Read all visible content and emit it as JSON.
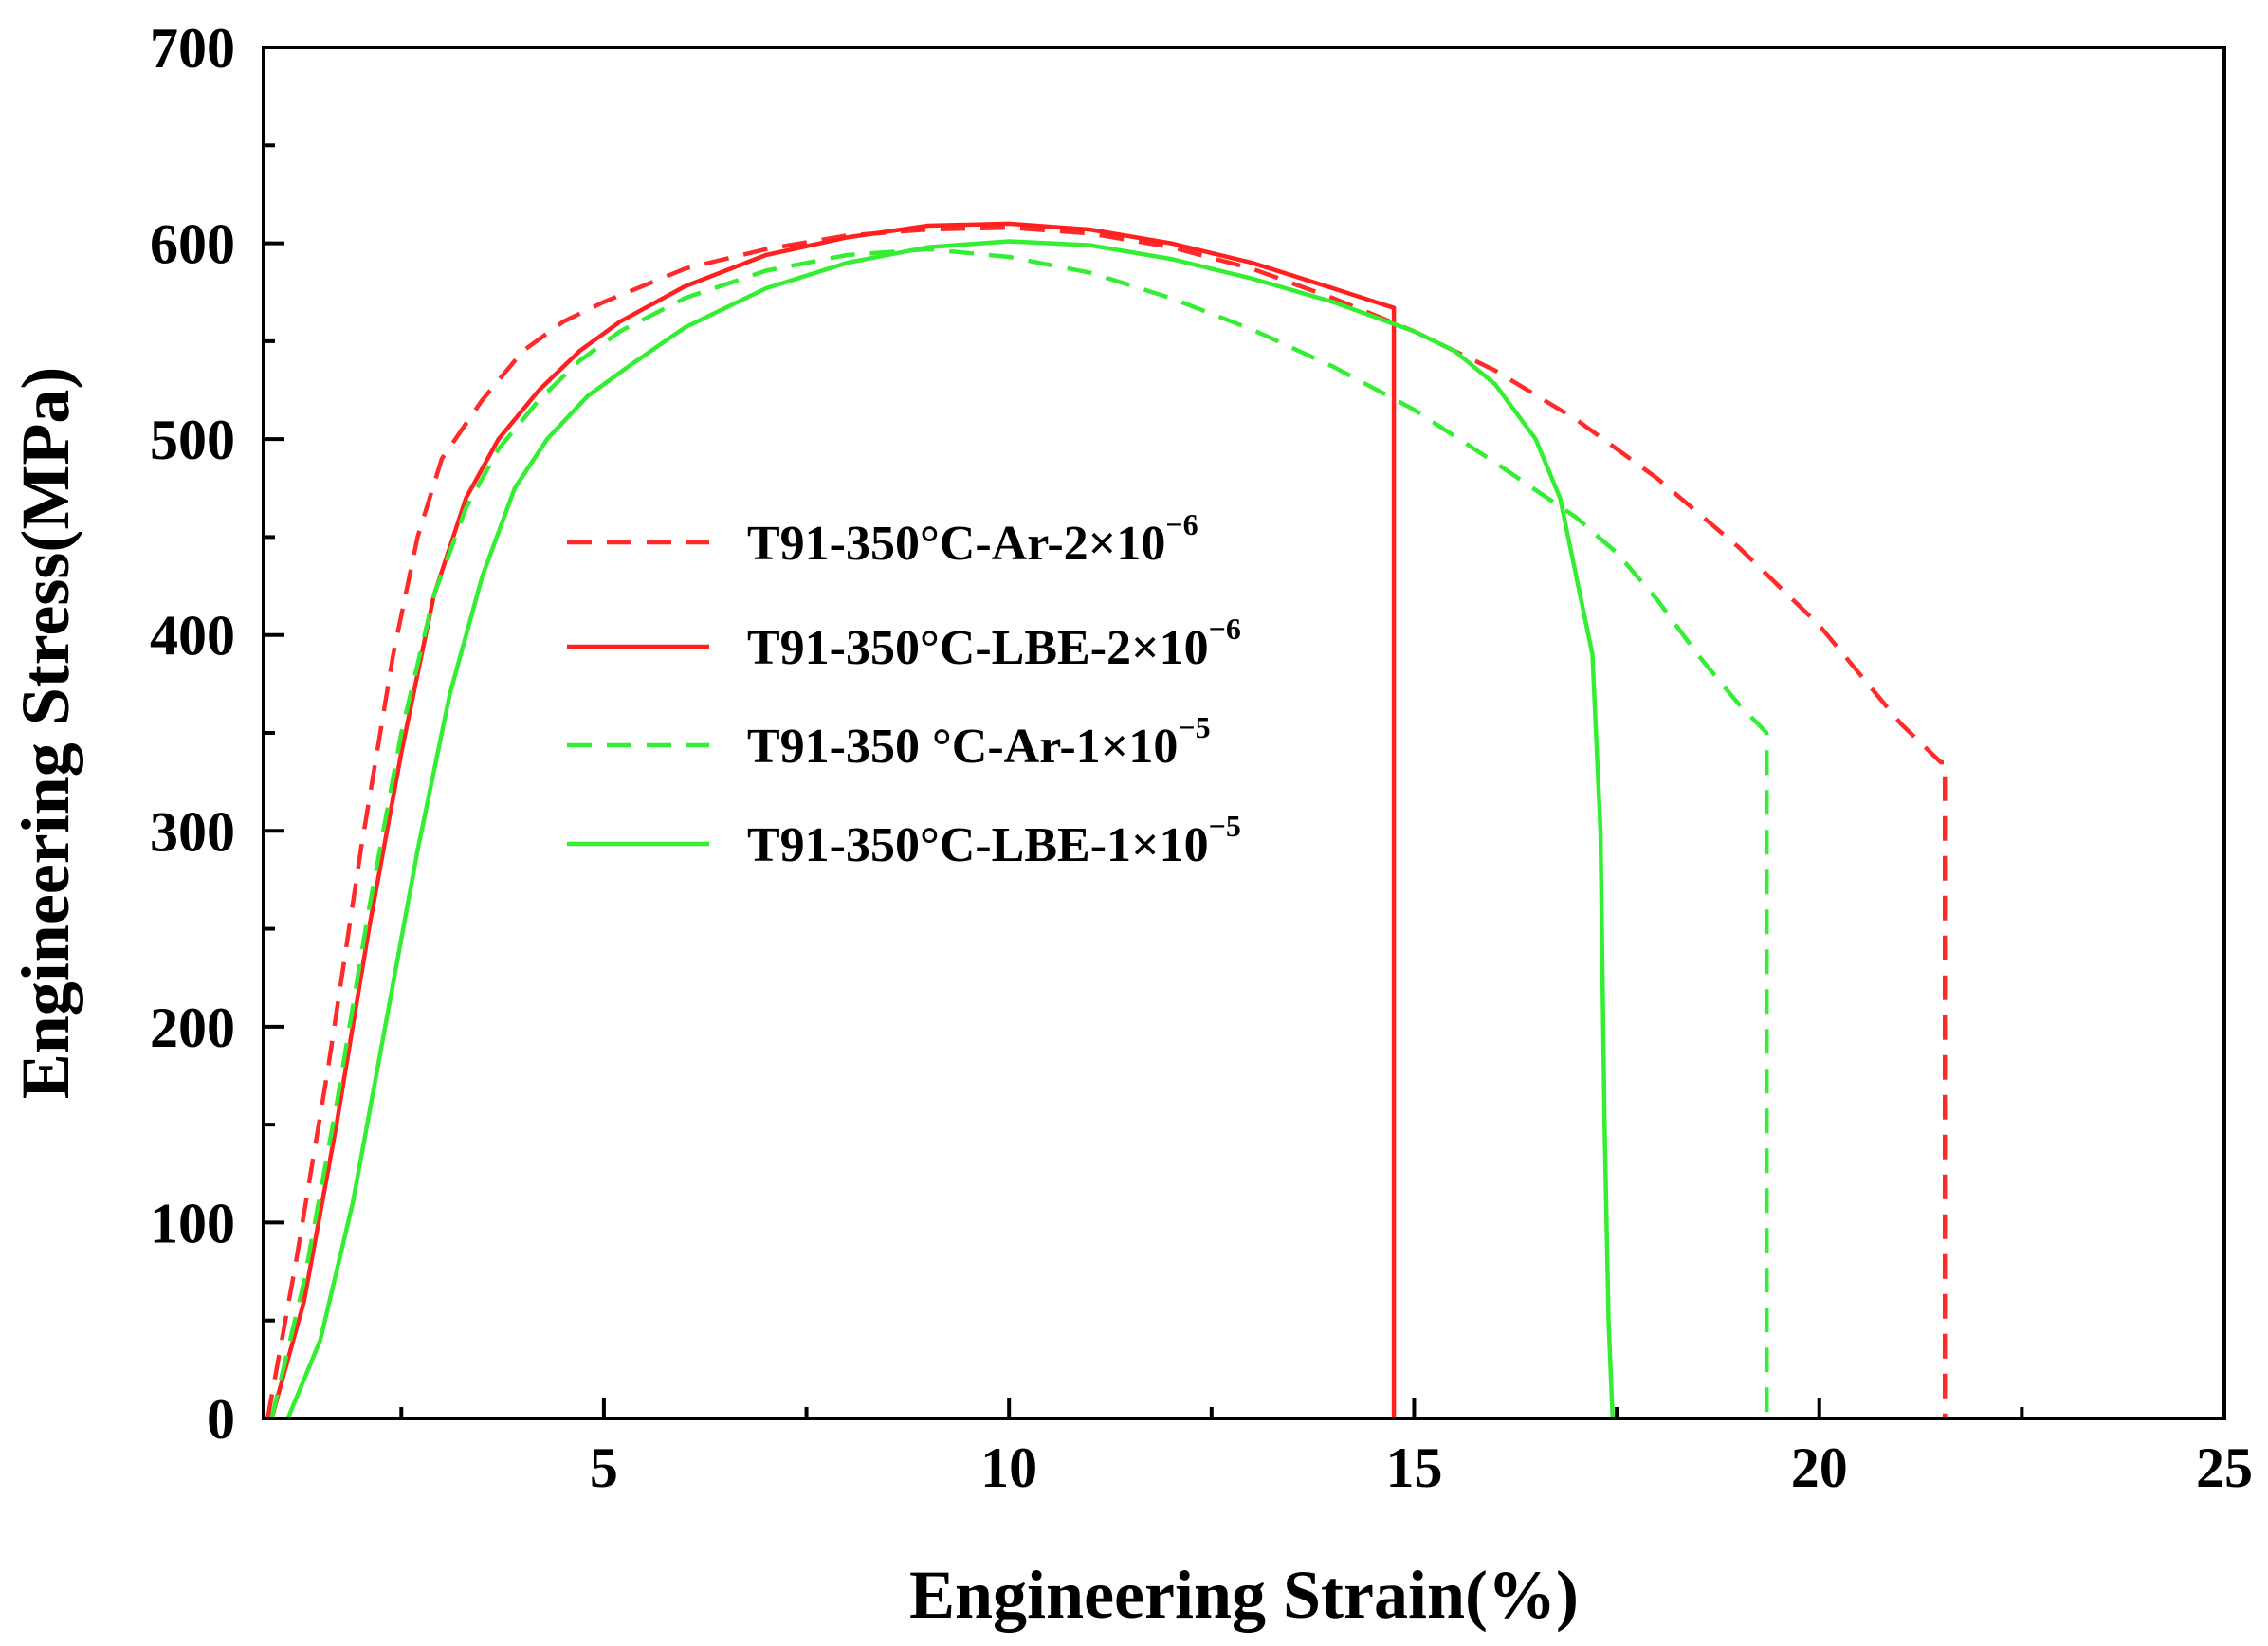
{
  "chart_data": {
    "type": "line",
    "title": "",
    "xlabel": "Engineering Strain(%)",
    "ylabel": "Engineering Stress(MPa)",
    "xlim": [
      0.8,
      25
    ],
    "ylim": [
      0,
      700
    ],
    "xticks": [
      5,
      10,
      15,
      20,
      25
    ],
    "yticks": [
      0,
      100,
      200,
      300,
      400,
      500,
      600,
      700
    ],
    "legend_position": "center-left",
    "series": [
      {
        "name": "T91-350°C-Ar-2×10",
        "exponent": "−6",
        "color": "#ff2a2a",
        "dash": "dashed",
        "x": [
          0.85,
          1.2,
          1.6,
          2.0,
          2.4,
          2.7,
          3.0,
          3.5,
          4.0,
          4.5,
          5.0,
          6.0,
          7.0,
          8.0,
          9.0,
          10.0,
          11.0,
          12.0,
          13.0,
          14.0,
          15.0,
          16.0,
          17.0,
          18.0,
          19.0,
          20.0,
          20.5,
          21.0,
          21.5,
          21.55,
          21.55
        ],
        "y": [
          0,
          80,
          180,
          290,
          390,
          450,
          490,
          520,
          545,
          560,
          570,
          587,
          597,
          604,
          607,
          608,
          605,
          598,
          587,
          572,
          555,
          535,
          510,
          480,
          445,
          405,
          380,
          355,
          335,
          335,
          0
        ]
      },
      {
        "name": "T91-350°C-LBE-2×10",
        "exponent": "−6",
        "color": "#ff2020",
        "dash": "solid",
        "x": [
          0.9,
          1.3,
          1.7,
          2.1,
          2.5,
          2.9,
          3.3,
          3.7,
          4.2,
          4.7,
          5.2,
          6.0,
          7.0,
          8.0,
          9.0,
          10.0,
          11.0,
          12.0,
          13.0,
          14.0,
          14.6,
          14.75,
          14.75
        ],
        "y": [
          0,
          60,
          150,
          250,
          340,
          420,
          470,
          500,
          525,
          545,
          560,
          578,
          594,
          603,
          609,
          610,
          607,
          600,
          590,
          577,
          569,
          567,
          0
        ]
      },
      {
        "name": "T91-350 °C-Ar-1×10",
        "exponent": "−5",
        "color": "#33ee33",
        "dash": "dashed",
        "x": [
          0.9,
          1.3,
          1.7,
          2.1,
          2.5,
          2.9,
          3.3,
          3.7,
          4.2,
          4.7,
          5.2,
          6.0,
          7.0,
          8.0,
          9.0,
          10.0,
          11.0,
          12.0,
          13.0,
          14.0,
          15.0,
          16.0,
          17.0,
          17.5,
          18.0,
          18.5,
          19.0,
          19.35,
          19.35
        ],
        "y": [
          0,
          70,
          160,
          260,
          350,
          420,
          465,
          495,
          520,
          540,
          555,
          572,
          586,
          594,
          597,
          593,
          585,
          572,
          556,
          537,
          515,
          488,
          460,
          442,
          418,
          390,
          365,
          350,
          0
        ]
      },
      {
        "name": "T91-350°C-LBE-1×10",
        "exponent": "−5",
        "color": "#33ee33",
        "dash": "solid",
        "x": [
          1.1,
          1.5,
          1.9,
          2.3,
          2.7,
          3.1,
          3.5,
          3.9,
          4.3,
          4.8,
          5.3,
          6.0,
          7.0,
          8.0,
          9.0,
          10.0,
          11.0,
          12.0,
          13.0,
          14.0,
          15.0,
          15.5,
          16.0,
          16.5,
          16.8,
          17.0,
          17.2,
          17.3,
          17.35,
          17.4,
          17.45,
          17.45
        ],
        "y": [
          0,
          40,
          110,
          200,
          290,
          370,
          430,
          475,
          500,
          522,
          537,
          557,
          577,
          590,
          598,
          601,
          599,
          592,
          582,
          570,
          555,
          545,
          528,
          500,
          470,
          430,
          390,
          300,
          150,
          50,
          0,
          0
        ]
      }
    ]
  }
}
